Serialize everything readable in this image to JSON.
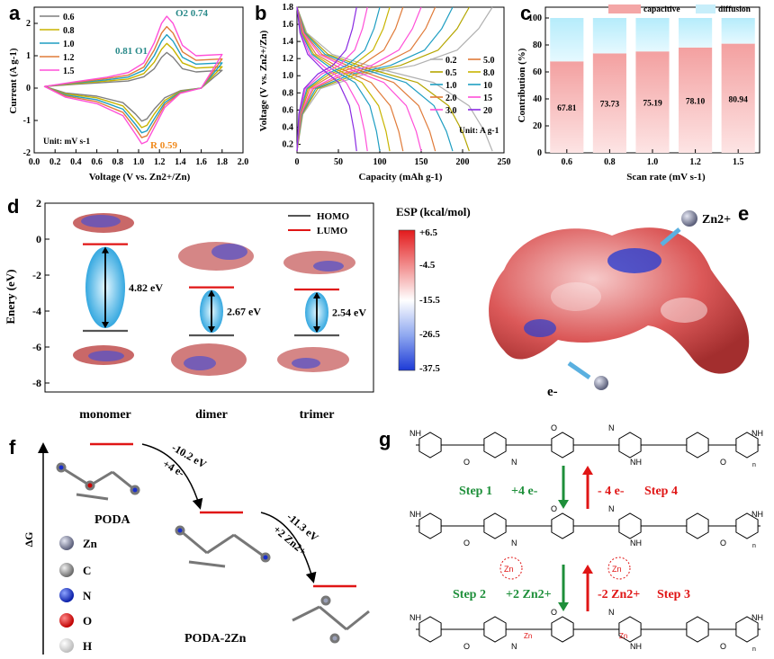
{
  "panel_labels": {
    "a": "a",
    "b": "b",
    "c": "c",
    "d": "d",
    "e": "e",
    "f": "f",
    "g": "g"
  },
  "colors": {
    "0.6": "#7f7f7f",
    "0.8": "#c8b400",
    "1.0": "#1f9ec2",
    "1.2": "#e07b39",
    "1.5": "#ff4fd8",
    "capacitive": "#f4a6a6",
    "diffusion": "#c7eefa",
    "accent_teal": "#2a8a8a",
    "accent_orange": "#f08a1c",
    "step_green": "#1e8f3a",
    "step_red": "#e01515"
  },
  "chart_data": [
    {
      "panel": "a",
      "type": "line",
      "title": "",
      "xlabel": "Voltage (V vs. Zn2+/Zn)",
      "ylabel": "Current (A g-1)",
      "xlim": [
        0.0,
        2.0
      ],
      "ylim": [
        -2.0,
        2.5
      ],
      "xticks": [
        "0.0",
        "0.2",
        "0.4",
        "0.6",
        "0.8",
        "1.0",
        "1.2",
        "1.4",
        "1.6",
        "1.8",
        "2.0"
      ],
      "yticks": [
        "-2",
        "-1",
        "0",
        "1",
        "2"
      ],
      "series": [
        {
          "name": "0.6",
          "color": "#7f7f7f",
          "upper": [
            [
              0.1,
              0.05
            ],
            [
              0.4,
              0.12
            ],
            [
              0.7,
              0.18
            ],
            [
              0.9,
              0.22
            ],
            [
              1.05,
              0.35
            ],
            [
              1.15,
              0.6
            ],
            [
              1.22,
              0.95
            ],
            [
              1.27,
              1.1
            ],
            [
              1.33,
              0.95
            ],
            [
              1.42,
              0.6
            ],
            [
              1.55,
              0.5
            ],
            [
              1.8,
              0.55
            ]
          ],
          "lower": [
            [
              1.8,
              0.55
            ],
            [
              1.6,
              0.0
            ],
            [
              1.4,
              -0.08
            ],
            [
              1.25,
              -0.3
            ],
            [
              1.15,
              -0.65
            ],
            [
              1.08,
              -0.95
            ],
            [
              1.03,
              -1.02
            ],
            [
              0.97,
              -0.8
            ],
            [
              0.85,
              -0.45
            ],
            [
              0.6,
              -0.25
            ],
            [
              0.3,
              -0.15
            ],
            [
              0.1,
              0.05
            ]
          ]
        },
        {
          "name": "0.8",
          "color": "#c8b400",
          "upper": [
            [
              0.1,
              0.05
            ],
            [
              0.4,
              0.14
            ],
            [
              0.7,
              0.22
            ],
            [
              0.9,
              0.28
            ],
            [
              1.05,
              0.45
            ],
            [
              1.15,
              0.8
            ],
            [
              1.22,
              1.2
            ],
            [
              1.27,
              1.38
            ],
            [
              1.33,
              1.2
            ],
            [
              1.42,
              0.78
            ],
            [
              1.55,
              0.62
            ],
            [
              1.8,
              0.66
            ]
          ],
          "lower": [
            [
              1.8,
              0.66
            ],
            [
              1.6,
              0.0
            ],
            [
              1.4,
              -0.1
            ],
            [
              1.25,
              -0.38
            ],
            [
              1.15,
              -0.8
            ],
            [
              1.08,
              -1.15
            ],
            [
              1.03,
              -1.22
            ],
            [
              0.97,
              -0.98
            ],
            [
              0.85,
              -0.55
            ],
            [
              0.6,
              -0.3
            ],
            [
              0.3,
              -0.18
            ],
            [
              0.1,
              0.05
            ]
          ]
        },
        {
          "name": "1.0",
          "color": "#1f9ec2",
          "upper": [
            [
              0.1,
              0.05
            ],
            [
              0.4,
              0.16
            ],
            [
              0.7,
              0.26
            ],
            [
              0.9,
              0.34
            ],
            [
              1.05,
              0.55
            ],
            [
              1.15,
              1.0
            ],
            [
              1.22,
              1.45
            ],
            [
              1.27,
              1.65
            ],
            [
              1.33,
              1.45
            ],
            [
              1.42,
              0.95
            ],
            [
              1.55,
              0.74
            ],
            [
              1.8,
              0.78
            ]
          ],
          "lower": [
            [
              1.8,
              0.78
            ],
            [
              1.6,
              0.0
            ],
            [
              1.4,
              -0.12
            ],
            [
              1.25,
              -0.45
            ],
            [
              1.15,
              -0.95
            ],
            [
              1.08,
              -1.32
            ],
            [
              1.03,
              -1.38
            ],
            [
              0.97,
              -1.12
            ],
            [
              0.85,
              -0.65
            ],
            [
              0.6,
              -0.36
            ],
            [
              0.3,
              -0.21
            ],
            [
              0.1,
              0.05
            ]
          ]
        },
        {
          "name": "1.2",
          "color": "#e07b39",
          "upper": [
            [
              0.1,
              0.05
            ],
            [
              0.4,
              0.18
            ],
            [
              0.7,
              0.3
            ],
            [
              0.9,
              0.4
            ],
            [
              1.05,
              0.65
            ],
            [
              1.15,
              1.18
            ],
            [
              1.22,
              1.7
            ],
            [
              1.27,
              1.9
            ],
            [
              1.33,
              1.7
            ],
            [
              1.42,
              1.12
            ],
            [
              1.55,
              0.86
            ],
            [
              1.8,
              0.9
            ]
          ],
          "lower": [
            [
              1.8,
              0.9
            ],
            [
              1.6,
              0.0
            ],
            [
              1.4,
              -0.14
            ],
            [
              1.25,
              -0.52
            ],
            [
              1.15,
              -1.08
            ],
            [
              1.08,
              -1.47
            ],
            [
              1.03,
              -1.53
            ],
            [
              0.97,
              -1.25
            ],
            [
              0.85,
              -0.75
            ],
            [
              0.6,
              -0.42
            ],
            [
              0.3,
              -0.24
            ],
            [
              0.1,
              0.05
            ]
          ]
        },
        {
          "name": "1.5",
          "color": "#ff4fd8",
          "upper": [
            [
              0.1,
              0.05
            ],
            [
              0.4,
              0.2
            ],
            [
              0.7,
              0.34
            ],
            [
              0.9,
              0.48
            ],
            [
              1.05,
              0.78
            ],
            [
              1.15,
              1.4
            ],
            [
              1.22,
              2.0
            ],
            [
              1.27,
              2.22
            ],
            [
              1.33,
              2.0
            ],
            [
              1.42,
              1.32
            ],
            [
              1.55,
              1.0
            ],
            [
              1.8,
              1.04
            ]
          ],
          "lower": [
            [
              1.8,
              1.04
            ],
            [
              1.6,
              0.0
            ],
            [
              1.4,
              -0.16
            ],
            [
              1.25,
              -0.6
            ],
            [
              1.15,
              -1.22
            ],
            [
              1.08,
              -1.65
            ],
            [
              1.03,
              -1.72
            ],
            [
              0.97,
              -1.42
            ],
            [
              0.85,
              -0.85
            ],
            [
              0.6,
              -0.48
            ],
            [
              0.3,
              -0.28
            ],
            [
              0.1,
              0.05
            ]
          ]
        }
      ],
      "annotations": {
        "o1": "0.81 O1",
        "o2": "O2 0.74",
        "r": "R 0.59",
        "unit": "Unit: mV s-1"
      }
    },
    {
      "panel": "b",
      "type": "line",
      "xlabel": "Capacity (mAh g-1)",
      "ylabel": "Voltage (V vs. Zn2+/Zn)",
      "xlim": [
        0,
        250
      ],
      "ylim": [
        0.1,
        1.8
      ],
      "xticks": [
        "0",
        "50",
        "100",
        "150",
        "200",
        "250"
      ],
      "yticks": [
        "0.2",
        "0.4",
        "0.6",
        "0.8",
        "1.0",
        "1.2",
        "1.4",
        "1.6",
        "1.8"
      ],
      "series": [
        {
          "name": "0.2",
          "color": "#b0b0b0",
          "cap": 236
        },
        {
          "name": "0.5",
          "color": "#b5a600",
          "cap": 208
        },
        {
          "name": "1.0",
          "color": "#1f9ec2",
          "cap": 188
        },
        {
          "name": "2.0",
          "color": "#e07b39",
          "cap": 167
        },
        {
          "name": "3.0",
          "color": "#ff4fd8",
          "cap": 150
        },
        {
          "name": "5.0",
          "color": "#e07b39",
          "cap": 128
        },
        {
          "name": "8.0",
          "color": "#c8b400",
          "cap": 112
        },
        {
          "name": "10",
          "color": "#1f9ec2",
          "cap": 100
        },
        {
          "name": "15",
          "color": "#ff4fd8",
          "cap": 85
        },
        {
          "name": "20",
          "color": "#8a2be2",
          "cap": 72
        }
      ],
      "unit": "Unit: A g-1"
    },
    {
      "panel": "c",
      "type": "bar",
      "xlabel": "Scan rate (mV s-1)",
      "ylabel": "Contribution (%)",
      "ylim": [
        0,
        100
      ],
      "yticks": [
        "0",
        "20",
        "40",
        "60",
        "80",
        "100"
      ],
      "categories": [
        "0.6",
        "0.8",
        "1.0",
        "1.2",
        "1.5"
      ],
      "series": [
        {
          "name": "capacitive",
          "values": [
            67.81,
            73.73,
            75.19,
            78.1,
            80.94
          ]
        },
        {
          "name": "diffusion",
          "values": [
            32.19,
            26.27,
            24.81,
            21.9,
            19.06
          ]
        }
      ],
      "value_labels": [
        "67.81",
        "73.73",
        "75.19",
        "78.10",
        "80.94"
      ]
    },
    {
      "panel": "d",
      "type": "scatter",
      "ylabel": "Enery (eV)",
      "ylim": [
        -8.5,
        2
      ],
      "yticks": [
        "2",
        "0",
        "-2",
        "-4",
        "-6",
        "-8"
      ],
      "categories": [
        "monomer",
        "dimer",
        "trimer"
      ],
      "homo": [
        -5.1,
        -5.35,
        -5.35
      ],
      "lumo": [
        -0.28,
        -2.68,
        -2.8
      ],
      "gaps": [
        "4.82 eV",
        "2.67 eV",
        "2.54 eV"
      ],
      "legend": [
        "HOMO",
        "LUMO"
      ]
    }
  ],
  "panel_e": {
    "title": "ESP  (kcal/mol)",
    "scale": [
      "+6.5",
      "-4.5",
      "-15.5",
      "-26.5",
      "-37.5"
    ],
    "zn": "Zn2+",
    "e": "e-"
  },
  "panel_f": {
    "axis": "ΔG",
    "arrow1": [
      "-10.2 eV",
      "+4 e-"
    ],
    "arrow2": [
      "-11.3 eV",
      "+2 Zn2+"
    ],
    "states": [
      "PODA",
      "PODA-2Zn"
    ],
    "legend": [
      "Zn",
      "C",
      "N",
      "O",
      "H"
    ]
  },
  "panel_g": {
    "step1": "Step 1",
    "step1_val": "+4 e-",
    "step4": "Step 4",
    "step4_val": "- 4 e-",
    "step2": "Step 2",
    "step2_val": "+2 Zn2+",
    "step3": "Step 3",
    "step3_val": "-2 Zn2+",
    "groups": {
      "nh": "NH",
      "n": "N",
      "o": "O",
      "zn": "Zn",
      "n_sub": "n"
    }
  }
}
